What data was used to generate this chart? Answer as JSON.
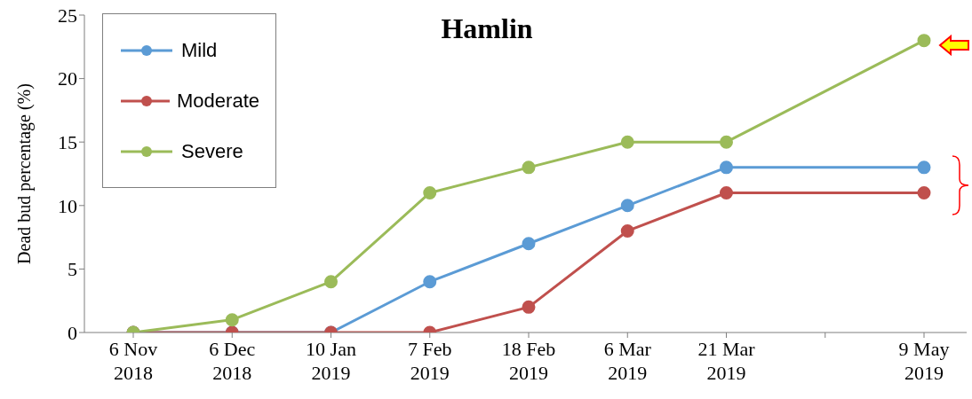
{
  "chart_data": {
    "type": "line",
    "title": "Hamlin",
    "ylabel": "Dead bud percentage (%)",
    "categories": [
      "6 Nov\n2018",
      "6 Dec\n2018",
      "10 Jan\n2019",
      "7 Feb\n2019",
      "18 Feb\n2019",
      "6 Mar\n2019",
      "21 Mar\n2019",
      null,
      "9 May\n2019"
    ],
    "series": [
      {
        "name": "Mild",
        "color": "#5b9bd5",
        "values": [
          0,
          0,
          0,
          4,
          7,
          10,
          13,
          null,
          13
        ]
      },
      {
        "name": "Moderate",
        "color": "#c0504d",
        "values": [
          0,
          0,
          0,
          0,
          2,
          8,
          11,
          null,
          11
        ]
      },
      {
        "name": "Severe",
        "color": "#9bbb59",
        "values": [
          0,
          1,
          4,
          11,
          13,
          15,
          15,
          null,
          23
        ]
      }
    ],
    "ylim": [
      0,
      25
    ],
    "yticks": [
      0,
      5,
      10,
      15,
      20,
      25
    ],
    "grid": false,
    "legend": "top left",
    "marker": "circle",
    "line_style": "solid"
  }
}
